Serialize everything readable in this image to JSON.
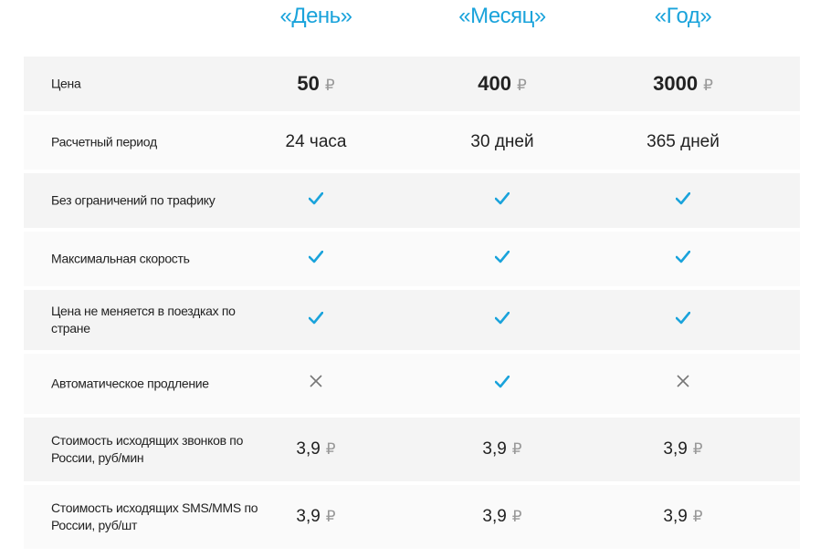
{
  "plans": [
    "«День»",
    "«Месяц»",
    "«Год»"
  ],
  "accent": "#1aa3db",
  "currency": "₽",
  "rows": [
    {
      "label": "Цена",
      "type": "price",
      "values": [
        "50",
        "400",
        "3000"
      ]
    },
    {
      "label": "Расчетный период",
      "type": "text",
      "values": [
        "24 часа",
        "30 дней",
        "365 дней"
      ]
    },
    {
      "label": "Без ограничений по трафику",
      "type": "bool",
      "values": [
        true,
        true,
        true
      ]
    },
    {
      "label": "Максимальная скорость",
      "type": "bool",
      "values": [
        true,
        true,
        true
      ]
    },
    {
      "label": "Цена не меняется в поездках по стране",
      "type": "bool",
      "values": [
        true,
        true,
        true
      ]
    },
    {
      "label": "Автоматическое продление",
      "type": "bool",
      "values": [
        false,
        true,
        false
      ]
    },
    {
      "label": "Стоимость исходящих звонков по России, руб/мин",
      "type": "money",
      "values": [
        "3,9",
        "3,9",
        "3,9"
      ]
    },
    {
      "label": "Стоимость исходящих SMS/MMS по России, руб/шт",
      "type": "money",
      "values": [
        "3,9",
        "3,9",
        "3,9"
      ]
    }
  ]
}
